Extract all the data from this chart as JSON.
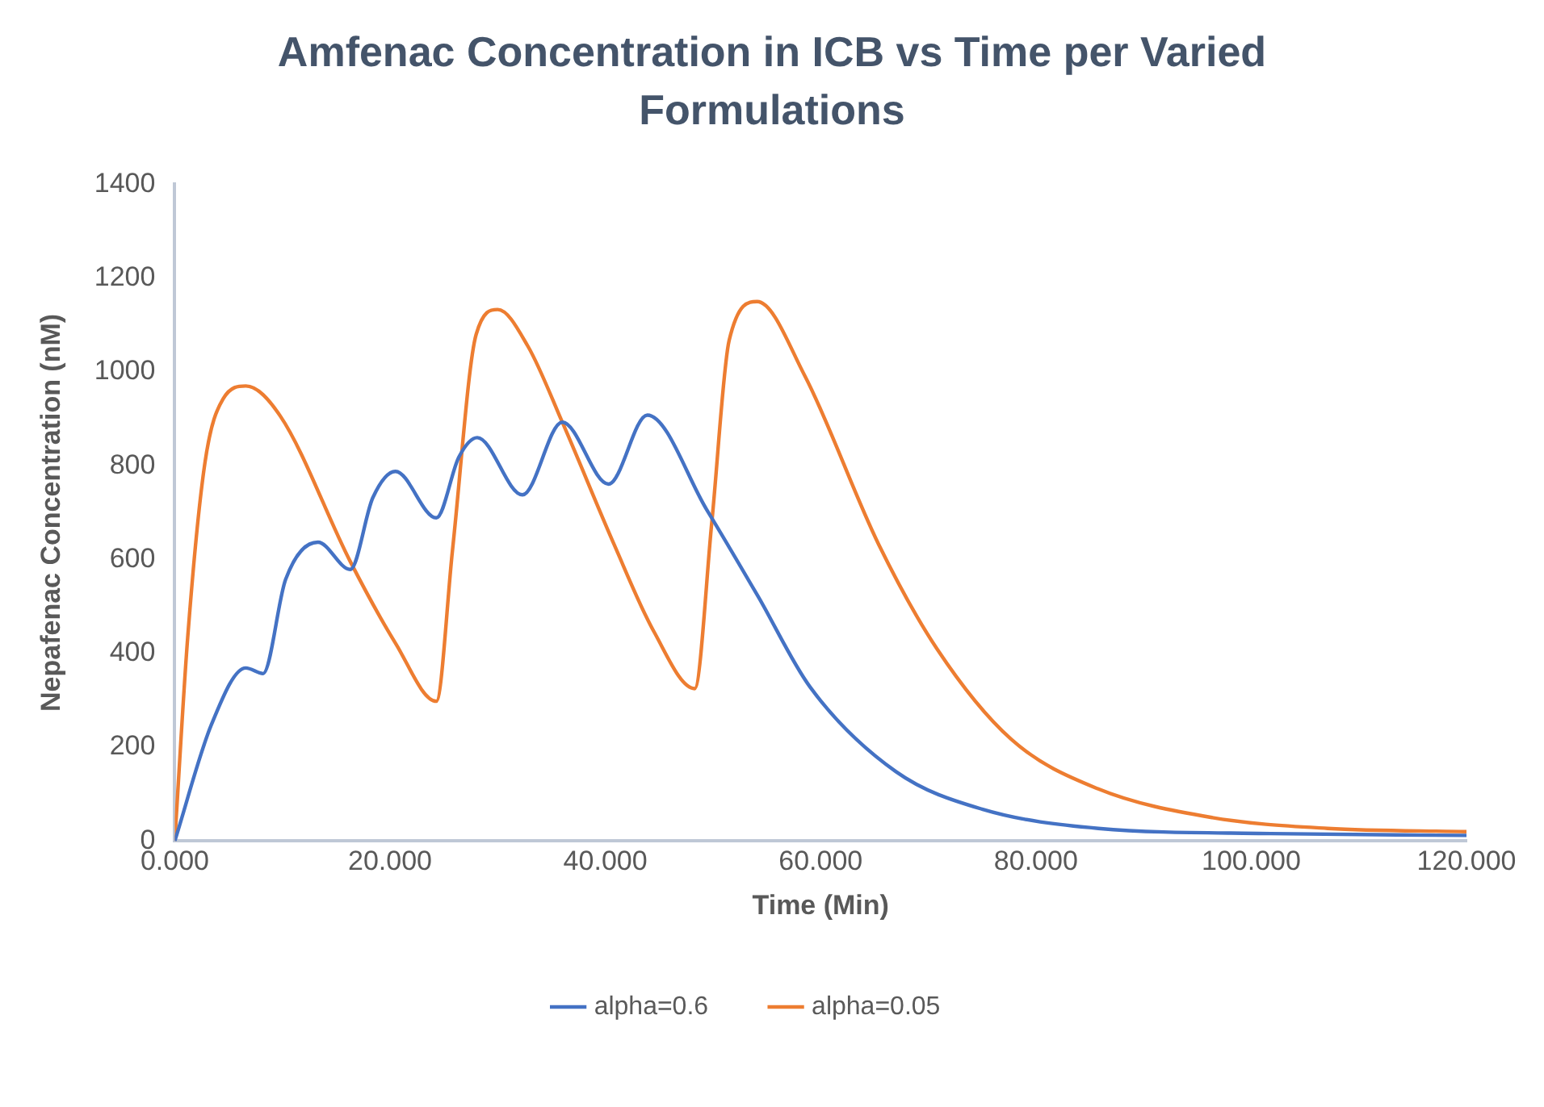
{
  "chart_data": {
    "type": "line",
    "title": "Amfenac Concentration in ICB vs Time per Varied Formulations",
    "xlabel": "Time (Min)",
    "ylabel": "Nepafenac Concentration (nM)",
    "xlim": [
      0,
      120
    ],
    "xticks": [
      {
        "value": 0,
        "label": "0.000"
      },
      {
        "value": 20,
        "label": "20.000"
      },
      {
        "value": 40,
        "label": "40.000"
      },
      {
        "value": 60,
        "label": "60.000"
      },
      {
        "value": 80,
        "label": "80.000"
      },
      {
        "value": 100,
        "label": "100.000"
      },
      {
        "value": 120,
        "label": "120.000"
      }
    ],
    "ylim": [
      0,
      1400
    ],
    "yticks": [
      0,
      200,
      400,
      600,
      800,
      1000,
      1200,
      1400
    ],
    "grid": false,
    "legend": "bottom",
    "marker": "none",
    "line_style": "solid",
    "series": [
      {
        "name": "alpha=0.6",
        "color": "#4472c4",
        "x": [
          0,
          3.4,
          6.6,
          8.2,
          10.3,
          13.3,
          16.3,
          18.4,
          20.5,
          24.3,
          26.4,
          28.1,
          32.3,
          36,
          40.3,
          43.9,
          49.4,
          54.2,
          59,
          67,
          75,
          85.8,
          101.8,
          120
        ],
        "values": [
          0,
          248,
          369,
          357,
          558,
          637,
          579,
          732,
          788,
          689,
          819,
          860,
          738,
          893,
          761,
          908,
          707,
          521,
          329,
          148,
          68,
          27,
          16,
          12
        ]
      },
      {
        "name": "alpha=0.05",
        "color": "#ed7d31",
        "x": [
          0,
          1.2,
          2.8,
          4.5,
          6.6,
          9.8,
          16.3,
          20.5,
          24.3,
          25.8,
          28,
          30,
          32.8,
          36,
          40.8,
          44.5,
          48.3,
          49.9,
          51.5,
          54.1,
          58.5,
          65.4,
          70.8,
          77.7,
          85.7,
          96.4,
          107.1,
          120
        ],
        "values": [
          0,
          434,
          806,
          943,
          970,
          906,
          596,
          422,
          298,
          620,
          1080,
          1133,
          1055,
          893,
          633,
          447,
          325,
          682,
          1067,
          1150,
          993,
          632,
          410,
          217,
          112,
          50,
          27,
          20
        ]
      }
    ]
  }
}
